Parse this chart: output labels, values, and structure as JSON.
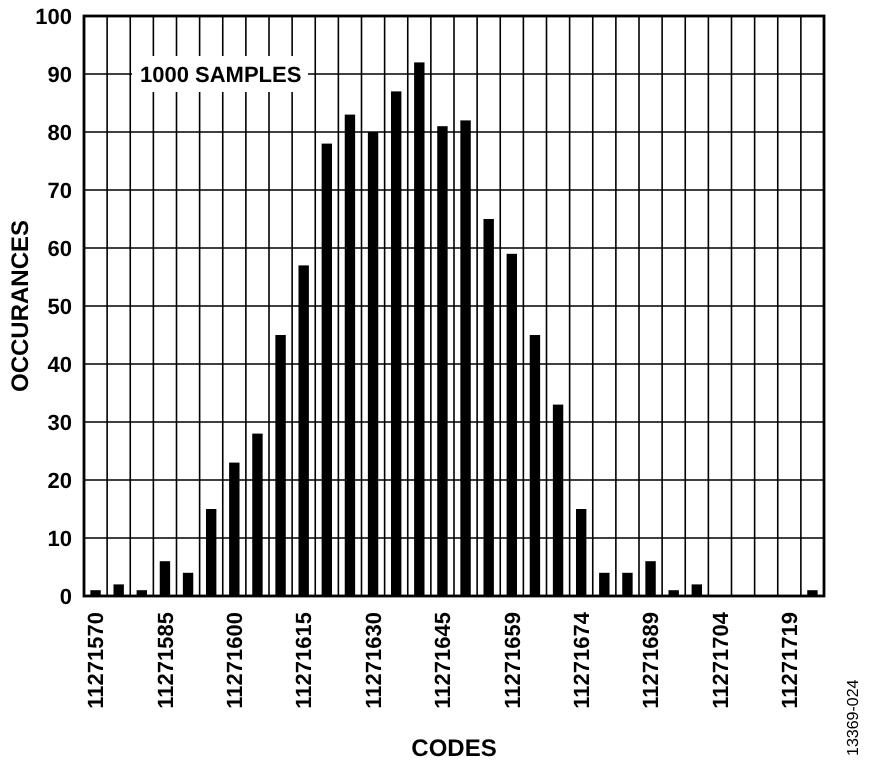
{
  "chart_data": {
    "type": "bar",
    "xlabel": "CODES",
    "ylabel": "OCCURANCES",
    "categories": [
      "11271570",
      null,
      null,
      "11271585",
      null,
      null,
      "11271600",
      null,
      null,
      "11271615",
      null,
      null,
      "11271630",
      null,
      null,
      "11271645",
      null,
      null,
      "11271659",
      null,
      null,
      "11271674",
      null,
      null,
      "11271689",
      null,
      null,
      "11271704",
      null,
      null,
      "11271719",
      null
    ],
    "values": [
      1,
      2,
      1,
      6,
      4,
      15,
      23,
      28,
      45,
      57,
      78,
      83,
      80,
      87,
      92,
      81,
      82,
      65,
      59,
      45,
      33,
      15,
      4,
      4,
      6,
      1,
      2,
      0,
      0,
      0,
      0,
      1
    ],
    "color": "#000000",
    "ylim": [
      0,
      100
    ],
    "yticks": [
      0,
      10,
      20,
      30,
      40,
      50,
      60,
      70,
      80,
      90,
      100
    ],
    "grid": true,
    "annotations": [
      "1000 SAMPLES",
      "13369-024"
    ]
  }
}
